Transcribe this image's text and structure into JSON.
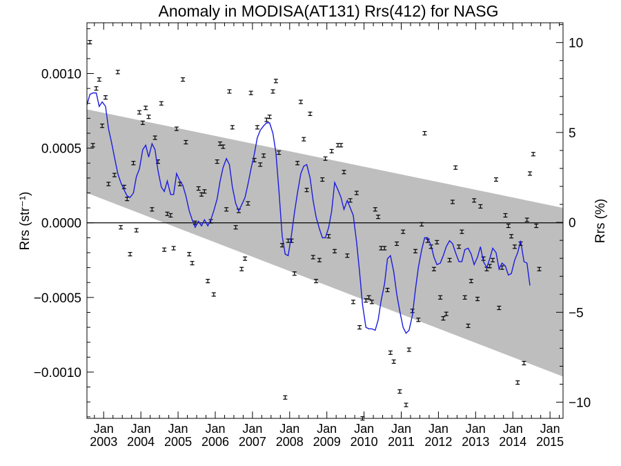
{
  "chart_data": {
    "type": "scatter",
    "title": "Anomaly in MODISA(AT131) Rrs(412) for NASG",
    "ylabel_left": "Rrs (str⁻¹)",
    "ylabel_right": "Rrs (%)",
    "xlim": [
      2002.55,
      2015.35
    ],
    "ylim": [
      -0.00131,
      0.00134
    ],
    "ylim_right": [
      -10.9,
      11.1
    ],
    "x_ticks": [
      {
        "x": 2003.0,
        "month": "Jan",
        "year": "2003"
      },
      {
        "x": 2004.0,
        "month": "Jan",
        "year": "2004"
      },
      {
        "x": 2005.0,
        "month": "Jan",
        "year": "2005"
      },
      {
        "x": 2006.0,
        "month": "Jan",
        "year": "2006"
      },
      {
        "x": 2007.0,
        "month": "Jan",
        "year": "2007"
      },
      {
        "x": 2008.0,
        "month": "Jan",
        "year": "2008"
      },
      {
        "x": 2009.0,
        "month": "Jan",
        "year": "2009"
      },
      {
        "x": 2010.0,
        "month": "Jan",
        "year": "2010"
      },
      {
        "x": 2011.0,
        "month": "Jan",
        "year": "2011"
      },
      {
        "x": 2012.0,
        "month": "Jan",
        "year": "2012"
      },
      {
        "x": 2013.0,
        "month": "Jan",
        "year": "2013"
      },
      {
        "x": 2014.0,
        "month": "Jan",
        "year": "2014"
      },
      {
        "x": 2015.0,
        "month": "Jan",
        "year": "2015"
      }
    ],
    "y_ticks_left": [
      {
        "v": 0.001,
        "label": "0.0010"
      },
      {
        "v": 0.0005,
        "label": "0.0005"
      },
      {
        "v": 0.0,
        "label": "0.0000"
      },
      {
        "v": -0.0005,
        "label": "−0.0005"
      },
      {
        "v": -0.001,
        "label": "−0.0010"
      }
    ],
    "y_ticks_right": [
      {
        "v": 10,
        "label": "10"
      },
      {
        "v": 5,
        "label": "5"
      },
      {
        "v": 0,
        "label": "0"
      },
      {
        "v": -5,
        "label": "−5"
      },
      {
        "v": -10,
        "label": "−10"
      }
    ],
    "band_upper": [
      [
        2002.55,
        0.00076
      ],
      [
        2015.35,
        0.0001
      ]
    ],
    "band_lower": [
      [
        2002.55,
        0.0002
      ],
      [
        2015.35,
        -0.00103
      ]
    ],
    "zero_line": 0.0,
    "colors": {
      "band": "#bebebe",
      "smooth_line": "#1a1adf",
      "points": "#000000",
      "zero_line": "#000000"
    },
    "grid": false,
    "legend": "none",
    "points": [
      [
        2002.63,
        0.00121
      ],
      [
        2002.71,
        0.00052
      ],
      [
        2002.8,
        0.0009
      ],
      [
        2002.88,
        0.00096
      ],
      [
        2002.96,
        0.00065
      ],
      [
        2003.05,
        0.00084
      ],
      [
        2003.13,
        0.00026
      ],
      [
        2003.29,
        0.00032
      ],
      [
        2003.38,
        0.00101
      ],
      [
        2003.46,
        -3e-05
      ],
      [
        2003.55,
        0.00024
      ],
      [
        2003.63,
        0.00016
      ],
      [
        2003.71,
        -0.00021
      ],
      [
        2003.8,
        0.0004
      ],
      [
        2003.88,
        -5e-05
      ],
      [
        2003.96,
        0.00074
      ],
      [
        2004.05,
        0.00067
      ],
      [
        2004.13,
        0.00077
      ],
      [
        2004.21,
        0.00071
      ],
      [
        2004.3,
        9e-05
      ],
      [
        2004.38,
        0.00057
      ],
      [
        2004.46,
        0.00041
      ],
      [
        2004.55,
        0.0008
      ],
      [
        2004.63,
        -0.00018
      ],
      [
        2004.71,
        6e-05
      ],
      [
        2004.8,
        5e-05
      ],
      [
        2004.88,
        -0.00017
      ],
      [
        2004.96,
        0.00063
      ],
      [
        2005.05,
        0.00026
      ],
      [
        2005.13,
        0.00096
      ],
      [
        2005.21,
        0.00054
      ],
      [
        2005.3,
        -0.00021
      ],
      [
        2005.38,
        -0.00027
      ],
      [
        2005.46,
        0.0
      ],
      [
        2005.55,
        0.00023
      ],
      [
        2005.63,
        0.00019
      ],
      [
        2005.71,
        0.00021
      ],
      [
        2005.8,
        -0.00039
      ],
      [
        2005.88,
        1e-05
      ],
      [
        2005.96,
        -0.00048
      ],
      [
        2006.05,
        0.00041
      ],
      [
        2006.13,
        0.00053
      ],
      [
        2006.21,
        0.00051
      ],
      [
        2006.3,
        9e-05
      ],
      [
        2006.38,
        0.00088
      ],
      [
        2006.46,
        0.00064
      ],
      [
        2006.55,
        -3e-05
      ],
      [
        2006.63,
        8e-05
      ],
      [
        2006.71,
        -0.00031
      ],
      [
        2006.8,
        -0.00024
      ],
      [
        2006.88,
        0.00013
      ],
      [
        2006.96,
        0.00087
      ],
      [
        2007.05,
        0.00042
      ],
      [
        2007.13,
        0.00064
      ],
      [
        2007.21,
        0.00039
      ],
      [
        2007.3,
        0.00045
      ],
      [
        2007.38,
        0.00069
      ],
      [
        2007.46,
        0.00071
      ],
      [
        2007.55,
        0.00088
      ],
      [
        2007.63,
        0.00095
      ],
      [
        2007.71,
        0.00047
      ],
      [
        2007.8,
        -0.00015
      ],
      [
        2007.88,
        -0.00117
      ],
      [
        2007.96,
        -0.00012
      ],
      [
        2008.05,
        -0.00012
      ],
      [
        2008.13,
        -0.00034
      ],
      [
        2008.21,
        0.0004
      ],
      [
        2008.3,
        0.00081
      ],
      [
        2008.38,
        0.00056
      ],
      [
        2008.46,
        0.00022
      ],
      [
        2008.55,
        0.00073
      ],
      [
        2008.63,
        -0.00023
      ],
      [
        2008.71,
        -0.00039
      ],
      [
        2008.8,
        -0.00025
      ],
      [
        2008.88,
        0.00029
      ],
      [
        2008.96,
        0.00043
      ],
      [
        2009.05,
        -9e-05
      ],
      [
        2009.13,
        0.00048
      ],
      [
        2009.21,
        -0.00019
      ],
      [
        2009.3,
        0.00052
      ],
      [
        2009.38,
        0.00052
      ],
      [
        2009.46,
        0.00034
      ],
      [
        2009.55,
        -0.00022
      ],
      [
        2009.63,
        0.00015
      ],
      [
        2009.71,
        -0.00053
      ],
      [
        2009.8,
        0.0002
      ],
      [
        2009.88,
        -0.0007
      ],
      [
        2009.96,
        -0.00131
      ],
      [
        2010.05,
        -0.00052
      ],
      [
        2010.13,
        -0.0005
      ],
      [
        2010.21,
        -0.00053
      ],
      [
        2010.3,
        9e-05
      ],
      [
        2010.38,
        4e-05
      ],
      [
        2010.46,
        -0.00017
      ],
      [
        2010.55,
        -0.00017
      ],
      [
        2010.63,
        -0.00045
      ],
      [
        2010.71,
        -0.00087
      ],
      [
        2010.8,
        -0.00093
      ],
      [
        2010.88,
        -0.00014
      ],
      [
        2010.96,
        -0.00113
      ],
      [
        2011.05,
        -6e-05
      ],
      [
        2011.13,
        -0.00122
      ],
      [
        2011.21,
        -0.00085
      ],
      [
        2011.3,
        -0.00059
      ],
      [
        2011.38,
        -0.00019
      ],
      [
        2011.46,
        -0.00065
      ],
      [
        2011.55,
        -1e-05
      ],
      [
        2011.63,
        0.0006
      ],
      [
        2011.71,
        -0.00012
      ],
      [
        2011.8,
        -0.00016
      ],
      [
        2011.88,
        -0.00031
      ],
      [
        2011.96,
        -0.00013
      ],
      [
        2012.05,
        -0.0005
      ],
      [
        2012.13,
        -0.00064
      ],
      [
        2012.21,
        -0.00061
      ],
      [
        2012.3,
        -0.00025
      ],
      [
        2012.38,
        0.00014
      ],
      [
        2012.46,
        0.00037
      ],
      [
        2012.55,
        -0.00016
      ],
      [
        2012.63,
        -6e-05
      ],
      [
        2012.71,
        -0.0005
      ],
      [
        2012.8,
        -0.00069
      ],
      [
        2012.88,
        -0.00039
      ],
      [
        2012.96,
        0.00015
      ],
      [
        2013.05,
        -0.00051
      ],
      [
        2013.13,
        0.00011
      ],
      [
        2013.21,
        -0.00024
      ],
      [
        2013.3,
        -0.00031
      ],
      [
        2013.38,
        -0.00029
      ],
      [
        2013.46,
        -0.00025
      ],
      [
        2013.55,
        0.00029
      ],
      [
        2013.63,
        -0.00057
      ],
      [
        2013.71,
        -0.0003
      ],
      [
        2013.8,
        5e-05
      ],
      [
        2013.88,
        -2e-05
      ],
      [
        2013.96,
        -9e-05
      ],
      [
        2014.05,
        -0.00016
      ],
      [
        2014.13,
        -0.00107
      ],
      [
        2014.21,
        -0.00014
      ],
      [
        2014.3,
        -0.00094
      ],
      [
        2014.38,
        2e-05
      ],
      [
        2014.46,
        0.00033
      ],
      [
        2014.55,
        0.00046
      ],
      [
        2014.63,
        -2e-05
      ],
      [
        2014.71,
        -0.00031
      ]
    ],
    "smooth_line": [
      [
        2002.55,
        0.00079
      ],
      [
        2002.63,
        0.00086
      ],
      [
        2002.71,
        0.00087
      ],
      [
        2002.8,
        0.00087
      ],
      [
        2002.88,
        0.00078
      ],
      [
        2002.96,
        0.00081
      ],
      [
        2003.05,
        0.00078
      ],
      [
        2003.13,
        0.00063
      ],
      [
        2003.21,
        0.00054
      ],
      [
        2003.29,
        0.00044
      ],
      [
        2003.38,
        0.00033
      ],
      [
        2003.46,
        0.00027
      ],
      [
        2003.55,
        0.00022
      ],
      [
        2003.63,
        0.00018
      ],
      [
        2003.71,
        0.00017
      ],
      [
        2003.8,
        0.0002
      ],
      [
        2003.88,
        0.00031
      ],
      [
        2003.96,
        0.00036
      ],
      [
        2004.05,
        0.00049
      ],
      [
        2004.13,
        0.00052
      ],
      [
        2004.21,
        0.00044
      ],
      [
        2004.3,
        0.00053
      ],
      [
        2004.38,
        0.00049
      ],
      [
        2004.46,
        0.00035
      ],
      [
        2004.55,
        0.00024
      ],
      [
        2004.63,
        0.00021
      ],
      [
        2004.71,
        0.00028
      ],
      [
        2004.8,
        0.00019
      ],
      [
        2004.88,
        0.00019
      ],
      [
        2004.96,
        0.00033
      ],
      [
        2005.05,
        0.00028
      ],
      [
        2005.13,
        0.00025
      ],
      [
        2005.21,
        0.00018
      ],
      [
        2005.3,
        8e-05
      ],
      [
        2005.38,
        2e-05
      ],
      [
        2005.46,
        -3e-05
      ],
      [
        2005.55,
        1e-05
      ],
      [
        2005.63,
        -2e-05
      ],
      [
        2005.71,
        2e-05
      ],
      [
        2005.8,
        -2e-05
      ],
      [
        2005.88,
        2e-05
      ],
      [
        2005.96,
        8e-05
      ],
      [
        2006.05,
        0.00016
      ],
      [
        2006.13,
        0.00028
      ],
      [
        2006.21,
        0.00037
      ],
      [
        2006.3,
        0.00043
      ],
      [
        2006.38,
        0.00039
      ],
      [
        2006.46,
        0.00024
      ],
      [
        2006.55,
        0.00013
      ],
      [
        2006.63,
        8e-05
      ],
      [
        2006.71,
        0.00012
      ],
      [
        2006.8,
        0.00017
      ],
      [
        2006.88,
        0.00026
      ],
      [
        2006.96,
        0.00036
      ],
      [
        2007.05,
        0.00046
      ],
      [
        2007.13,
        0.00057
      ],
      [
        2007.21,
        0.00062
      ],
      [
        2007.3,
        0.00065
      ],
      [
        2007.38,
        0.00067
      ],
      [
        2007.46,
        0.00067
      ],
      [
        2007.55,
        0.0006
      ],
      [
        2007.63,
        0.00047
      ],
      [
        2007.71,
        0.00022
      ],
      [
        2007.8,
        -9e-05
      ],
      [
        2007.88,
        -0.00021
      ],
      [
        2007.96,
        -0.00022
      ],
      [
        2008.05,
        -8e-05
      ],
      [
        2008.13,
        7e-05
      ],
      [
        2008.21,
        0.0002
      ],
      [
        2008.3,
        0.00033
      ],
      [
        2008.38,
        0.00038
      ],
      [
        2008.46,
        0.00039
      ],
      [
        2008.55,
        0.0003
      ],
      [
        2008.63,
        0.00015
      ],
      [
        2008.71,
        4e-05
      ],
      [
        2008.8,
        -4e-05
      ],
      [
        2008.88,
        -0.0001
      ],
      [
        2008.96,
        -0.0001
      ],
      [
        2009.05,
        -3e-05
      ],
      [
        2009.13,
        8e-05
      ],
      [
        2009.21,
        0.00027
      ],
      [
        2009.3,
        0.00022
      ],
      [
        2009.38,
        0.00017
      ],
      [
        2009.46,
        9e-05
      ],
      [
        2009.55,
        0.00015
      ],
      [
        2009.63,
        0.0001
      ],
      [
        2009.71,
        5e-05
      ],
      [
        2009.8,
        -0.00013
      ],
      [
        2009.88,
        -0.00033
      ],
      [
        2009.96,
        -0.00055
      ],
      [
        2010.05,
        -0.0007
      ],
      [
        2010.13,
        -0.00071
      ],
      [
        2010.21,
        -0.00071
      ],
      [
        2010.3,
        -0.00072
      ],
      [
        2010.38,
        -0.00065
      ],
      [
        2010.46,
        -0.00052
      ],
      [
        2010.55,
        -0.00041
      ],
      [
        2010.63,
        -0.00024
      ],
      [
        2010.71,
        -0.00022
      ],
      [
        2010.8,
        -0.00033
      ],
      [
        2010.88,
        -0.00048
      ],
      [
        2010.96,
        -0.00059
      ],
      [
        2011.05,
        -0.0007
      ],
      [
        2011.13,
        -0.00074
      ],
      [
        2011.21,
        -0.00072
      ],
      [
        2011.3,
        -0.00062
      ],
      [
        2011.38,
        -0.00045
      ],
      [
        2011.46,
        -0.0003
      ],
      [
        2011.55,
        -0.00018
      ],
      [
        2011.63,
        -0.0001
      ],
      [
        2011.71,
        -0.0001
      ],
      [
        2011.8,
        -0.00015
      ],
      [
        2011.88,
        -0.00023
      ],
      [
        2011.96,
        -0.00028
      ],
      [
        2012.05,
        -0.00027
      ],
      [
        2012.13,
        -0.00022
      ],
      [
        2012.21,
        -0.00016
      ],
      [
        2012.3,
        -0.00012
      ],
      [
        2012.38,
        -0.00014
      ],
      [
        2012.46,
        -0.0002
      ],
      [
        2012.55,
        -0.00026
      ],
      [
        2012.63,
        -0.00026
      ],
      [
        2012.71,
        -0.00018
      ],
      [
        2012.8,
        -0.00017
      ],
      [
        2012.88,
        -0.00021
      ],
      [
        2012.96,
        -0.00028
      ],
      [
        2013.05,
        -0.00023
      ],
      [
        2013.13,
        -0.00016
      ],
      [
        2013.21,
        -0.00026
      ],
      [
        2013.3,
        -0.0003
      ],
      [
        2013.38,
        -0.00024
      ],
      [
        2013.46,
        -0.00017
      ],
      [
        2013.55,
        -0.0002
      ],
      [
        2013.63,
        -0.00031
      ],
      [
        2013.71,
        -0.00027
      ],
      [
        2013.8,
        -0.00029
      ],
      [
        2013.88,
        -0.00035
      ],
      [
        2013.96,
        -0.00034
      ],
      [
        2014.05,
        -0.00025
      ],
      [
        2014.13,
        -0.0002
      ],
      [
        2014.21,
        -0.00012
      ],
      [
        2014.3,
        -0.00026
      ],
      [
        2014.38,
        -0.00027
      ],
      [
        2014.46,
        -0.00042
      ]
    ]
  }
}
